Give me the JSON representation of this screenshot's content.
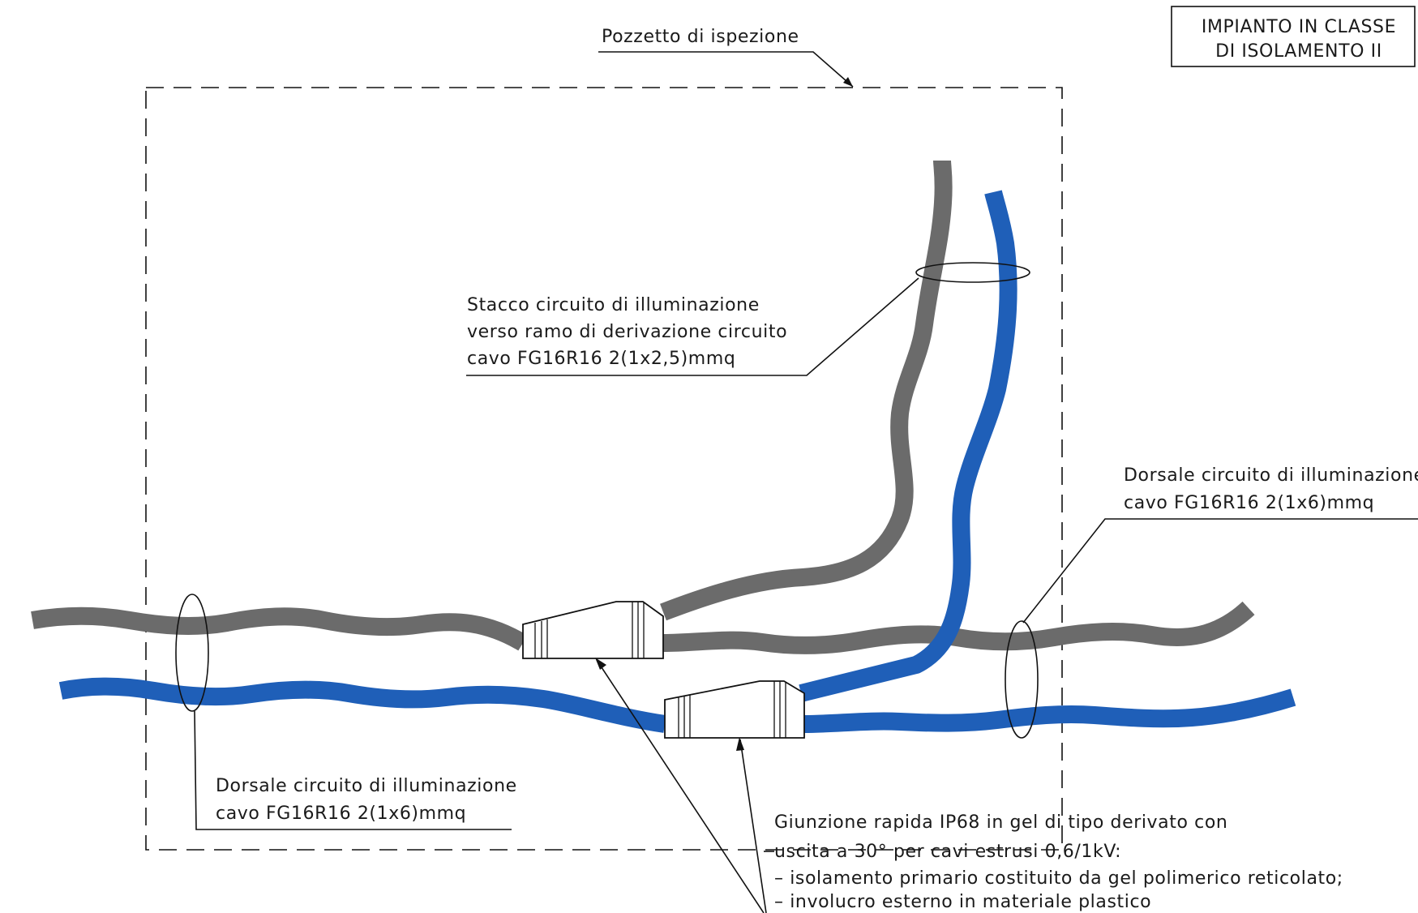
{
  "title_block": {
    "line1": "IMPIANTO IN CLASSE",
    "line2": "DI ISOLAMENTO II"
  },
  "labels": {
    "pozzetto": "Pozzetto di ispezione",
    "stacco": [
      "Stacco circuito di illuminazione",
      "verso ramo di derivazione circuito",
      "cavo FG16R16 2(1x2,5)mmq"
    ],
    "dorsale_right": [
      "Dorsale circuito di illuminazione",
      "cavo FG16R16 2(1x6)mmq"
    ],
    "dorsale_left": [
      "Dorsale circuito di illuminazione",
      "cavo FG16R16 2(1x6)mmq"
    ],
    "giunzione": [
      "Giunzione rapida IP68 in gel di tipo derivato con",
      "uscita a 30° per cavi estrusi 0,6/1kV:",
      "– isolamento primario costituito da gel polimerico reticolato;",
      "– involucro esterno in materiale plastico"
    ]
  },
  "colors": {
    "cable_grey": "#6b6b6b",
    "cable_blue": "#1f5fb8",
    "line": "#111111"
  }
}
